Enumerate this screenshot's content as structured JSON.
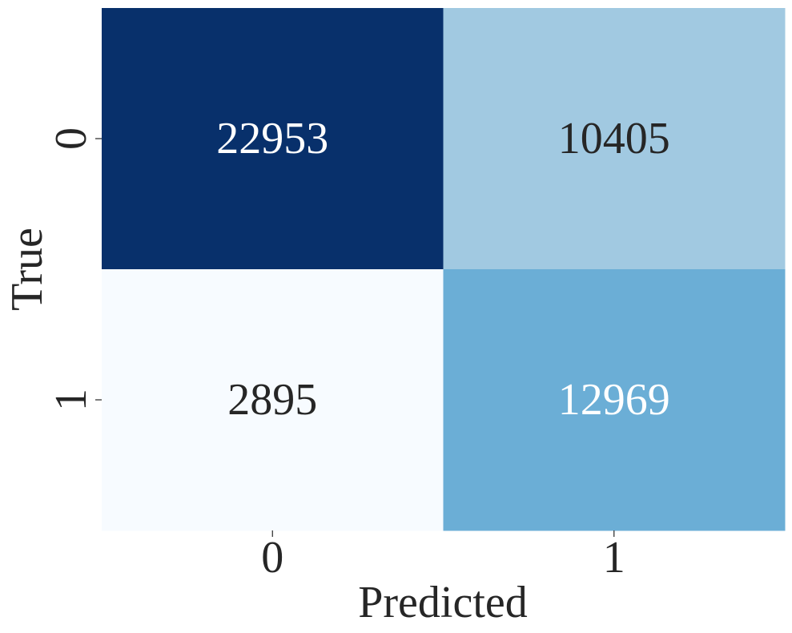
{
  "chart_data": {
    "type": "heatmap",
    "xlabel": "Predicted",
    "ylabel": "True",
    "x_categories": [
      "0",
      "1"
    ],
    "y_categories": [
      "0",
      "1"
    ],
    "values": [
      [
        22953,
        10405
      ],
      [
        2895,
        12969
      ]
    ],
    "colormap": "Blues",
    "color_range": [
      2895,
      22953
    ],
    "cell_colors": [
      [
        "#08306b",
        "#a1c9e1"
      ],
      [
        "#f7fbff",
        "#6baed6"
      ]
    ],
    "text_colors": [
      [
        "#ffffff",
        "#262626"
      ],
      [
        "#262626",
        "#ffffff"
      ]
    ],
    "colorbar": false,
    "grid": false
  }
}
